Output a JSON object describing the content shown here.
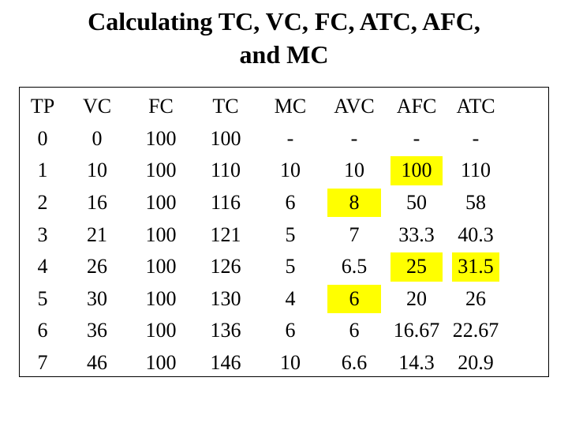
{
  "title": {
    "line1": "Calculating TC, VC, FC, ATC, AFC,",
    "line2": "and MC"
  },
  "table": {
    "headers": [
      "TP",
      "VC",
      "FC",
      "TC",
      "MC",
      "AVC",
      "AFC",
      "ATC"
    ],
    "rows": [
      [
        "0",
        "0",
        "100",
        "100",
        "-",
        "-",
        "-",
        "-"
      ],
      [
        "1",
        "10",
        "100",
        "110",
        "10",
        "10",
        "100",
        "110"
      ],
      [
        "2",
        "16",
        "100",
        "116",
        "6",
        "8",
        "50",
        "58"
      ],
      [
        "3",
        "21",
        "100",
        "121",
        "5",
        "7",
        "33.3",
        "40.3"
      ],
      [
        "4",
        "26",
        "100",
        "126",
        "5",
        "6.5",
        "25",
        "31.5"
      ],
      [
        "5",
        "30",
        "100",
        "130",
        "4",
        "6",
        "20",
        "26"
      ],
      [
        "6",
        "36",
        "100",
        "136",
        "6",
        "6",
        "16.67",
        "22.67"
      ],
      [
        "7",
        "46",
        "100",
        "146",
        "10",
        "6.6",
        "14.3",
        "20.9"
      ]
    ],
    "highlight_color": "#ffff00",
    "highlighted_cells": [
      {
        "row": 2,
        "col": 6
      },
      {
        "row": 3,
        "col": 5
      },
      {
        "row": 5,
        "col": 6
      },
      {
        "row": 5,
        "col": 7
      },
      {
        "row": 6,
        "col": 5
      }
    ]
  }
}
